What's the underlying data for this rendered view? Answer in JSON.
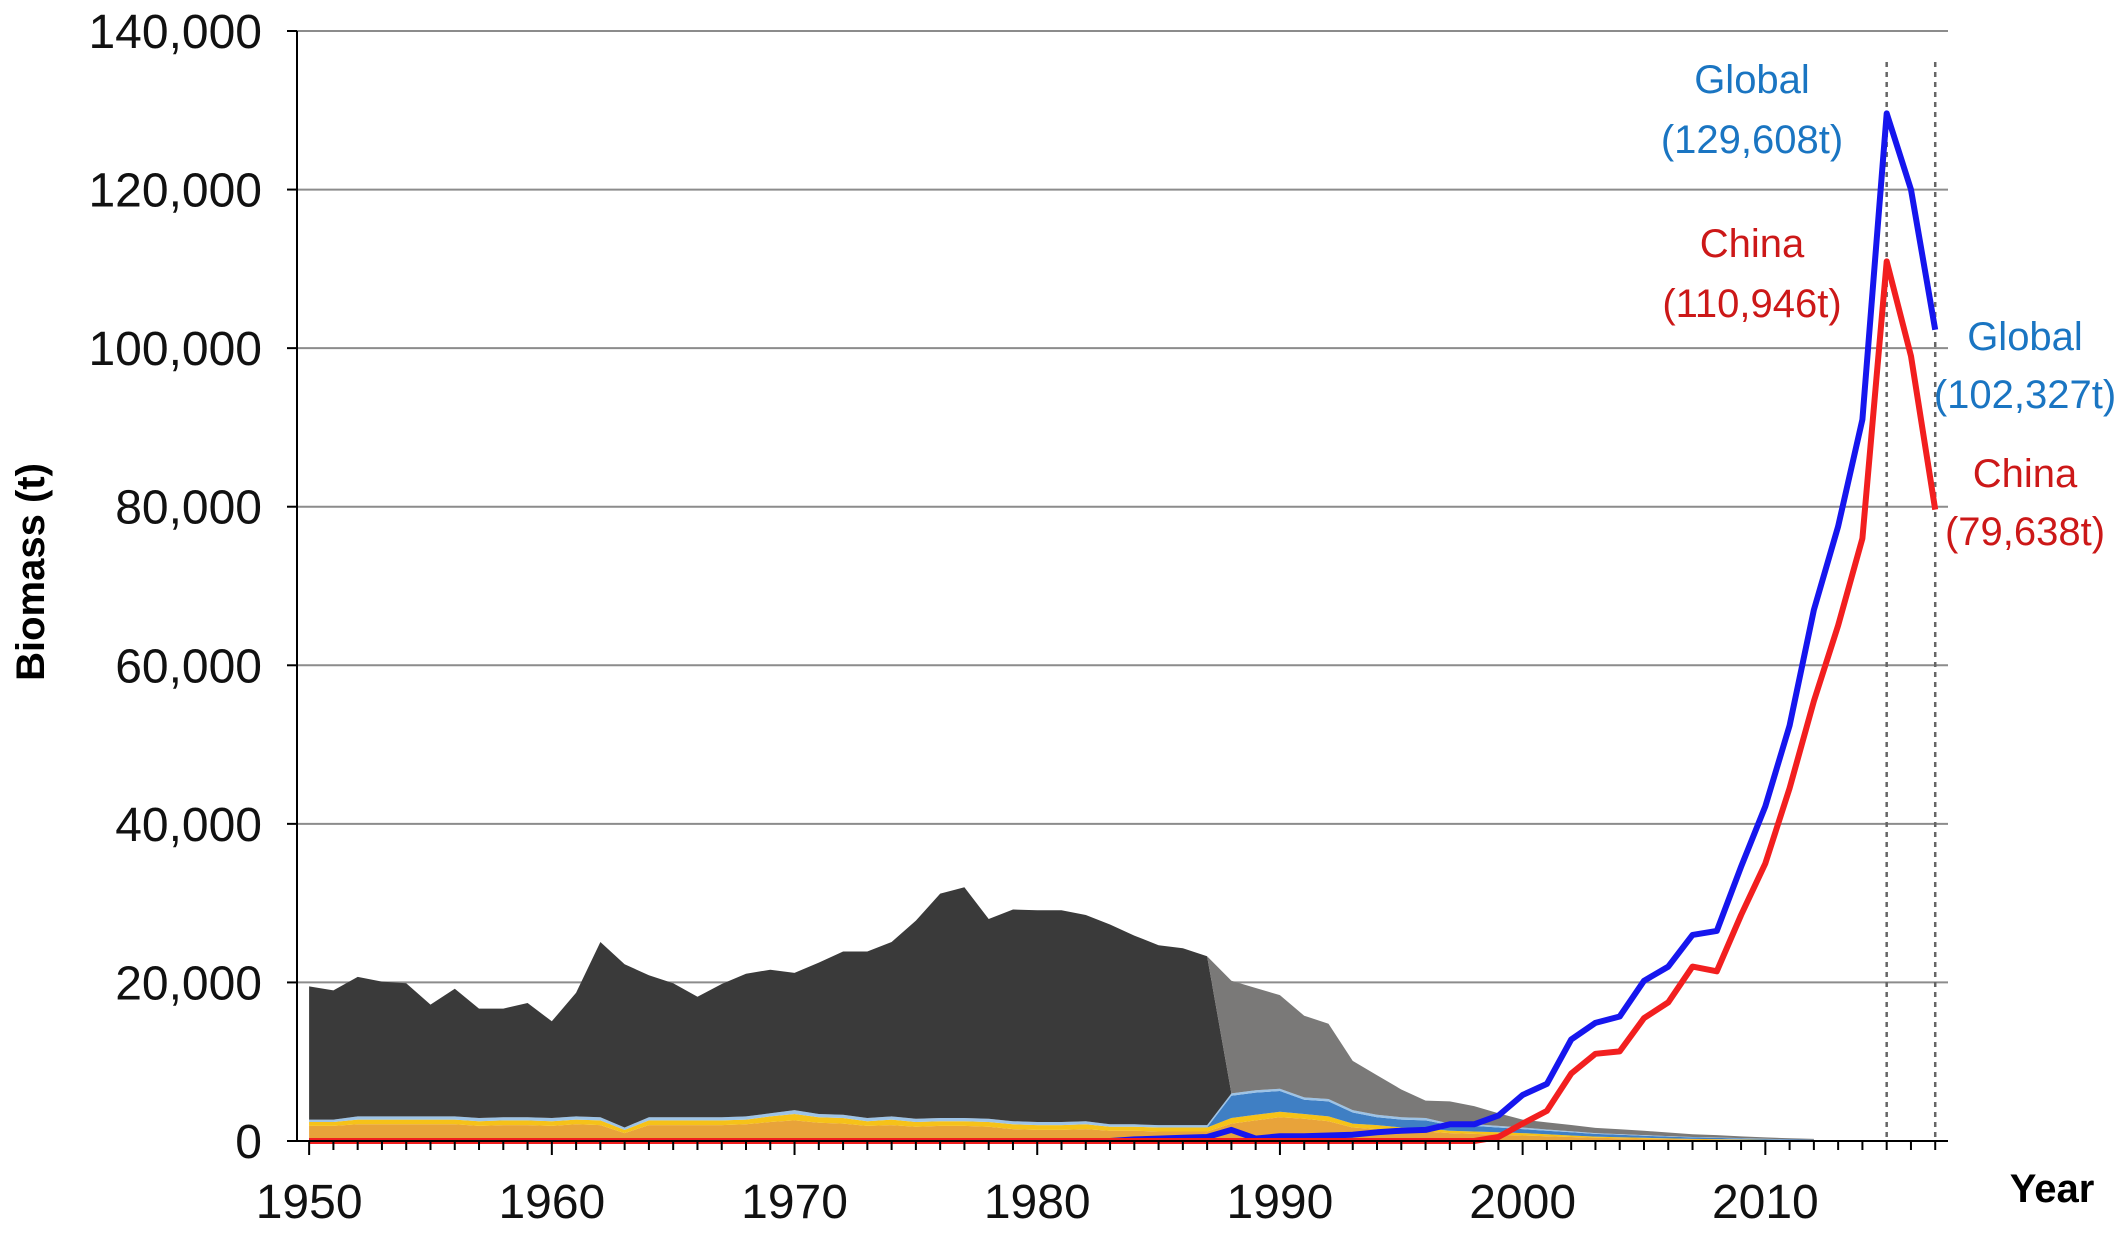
{
  "chart_data": {
    "type": "area",
    "xlabel": "Year",
    "ylabel": "Biomass (t)",
    "ylim": [
      0,
      140000
    ],
    "xlim": [
      1950,
      2017
    ],
    "grid": true,
    "y_ticks": [
      0,
      20000,
      40000,
      60000,
      80000,
      100000,
      120000,
      140000
    ],
    "y_tick_labels": [
      "0",
      "20,000",
      "40,000",
      "60,000",
      "80,000",
      "100,000",
      "120,000",
      "140,000"
    ],
    "x_ticks": [
      1950,
      1960,
      1970,
      1980,
      1990,
      2000,
      2010
    ],
    "x_tick_labels": [
      "1950",
      "1960",
      "1970",
      "1980",
      "1990",
      "2000",
      "2010"
    ],
    "stacked_areas": {
      "years": [
        1950,
        1951,
        1952,
        1953,
        1954,
        1955,
        1956,
        1957,
        1958,
        1959,
        1960,
        1961,
        1962,
        1963,
        1964,
        1965,
        1966,
        1967,
        1968,
        1969,
        1970,
        1971,
        1972,
        1973,
        1974,
        1975,
        1976,
        1977,
        1978,
        1979,
        1980,
        1981,
        1982,
        1983,
        1984,
        1985,
        1986,
        1987,
        1988,
        1989,
        1990,
        1991,
        1992,
        1993,
        1994,
        1995,
        1996,
        1997,
        1998,
        1999,
        2000,
        2001,
        2002,
        2003,
        2004,
        2005,
        2006,
        2007,
        2008,
        2009,
        2010,
        2011,
        2012
      ],
      "layers": [
        {
          "color": "#e8a33a",
          "values": [
            1900,
            1900,
            2100,
            2100,
            2100,
            2100,
            2100,
            1900,
            2000,
            2000,
            1900,
            2100,
            2000,
            1000,
            2000,
            2000,
            2000,
            2000,
            2100,
            2400,
            2600,
            2300,
            2200,
            1900,
            2000,
            1800,
            1900,
            1900,
            1800,
            1500,
            1400,
            1400,
            1500,
            1300,
            1300,
            1200,
            1200,
            1200,
            2200,
            2600,
            3000,
            2800,
            2500,
            1700,
            1500,
            1300,
            1200,
            1000,
            900,
            800,
            700,
            600,
            500,
            400,
            350,
            300,
            250,
            200,
            180,
            150,
            120,
            100,
            80
          ]
        },
        {
          "color": "#f6c218",
          "values": [
            500,
            500,
            600,
            600,
            600,
            600,
            600,
            600,
            600,
            600,
            600,
            600,
            600,
            400,
            600,
            600,
            600,
            600,
            600,
            700,
            800,
            700,
            700,
            600,
            700,
            600,
            600,
            600,
            600,
            600,
            600,
            600,
            600,
            500,
            500,
            500,
            500,
            500,
            700,
            700,
            700,
            600,
            600,
            500,
            500,
            400,
            400,
            300,
            300,
            300,
            300,
            250,
            200,
            150,
            130,
            100,
            80,
            70,
            60,
            50,
            40,
            30,
            20
          ]
        },
        {
          "color": "#3f7fc4",
          "values": [
            0,
            0,
            0,
            0,
            0,
            0,
            0,
            0,
            0,
            0,
            0,
            0,
            0,
            0,
            0,
            0,
            0,
            0,
            0,
            0,
            0,
            0,
            0,
            0,
            0,
            0,
            0,
            0,
            0,
            0,
            0,
            0,
            0,
            0,
            0,
            0,
            0,
            0,
            2800,
            2800,
            2600,
            1800,
            1900,
            1400,
            1000,
            1000,
            1000,
            700,
            700,
            600,
            500,
            450,
            400,
            350,
            300,
            260,
            220,
            180,
            150,
            120,
            90,
            70,
            50
          ]
        },
        {
          "color": "#9dc3e6",
          "values": [
            300,
            300,
            400,
            400,
            400,
            400,
            400,
            400,
            400,
            400,
            400,
            400,
            400,
            300,
            400,
            400,
            400,
            400,
            400,
            400,
            500,
            400,
            400,
            400,
            400,
            400,
            400,
            400,
            400,
            400,
            400,
            400,
            400,
            300,
            300,
            300,
            300,
            300,
            300,
            300,
            300,
            300,
            300,
            300,
            300,
            300,
            300,
            200,
            200,
            200,
            200,
            150,
            120,
            100,
            90,
            80,
            70,
            60,
            50,
            40,
            30,
            20,
            10
          ]
        },
        {
          "color": "#3a3a3a",
          "values": [
            16800,
            16300,
            17600,
            17000,
            16800,
            14100,
            16100,
            13800,
            13700,
            14400,
            12200,
            15600,
            22100,
            20600,
            17900,
            16900,
            15200,
            16800,
            18000,
            18100,
            17300,
            19100,
            20600,
            21000,
            22000,
            25000,
            28300,
            29100,
            25200,
            26700,
            26700,
            26700,
            26000,
            25200,
            23800,
            22700,
            22300,
            21300,
            0,
            0,
            0,
            0,
            0,
            0,
            0,
            0,
            0,
            0,
            0,
            0,
            0,
            0,
            0,
            0,
            0,
            0,
            0,
            0,
            0,
            0,
            0,
            0,
            0
          ]
        },
        {
          "color": "#7a7978",
          "values": [
            0,
            0,
            0,
            0,
            0,
            0,
            0,
            0,
            0,
            0,
            0,
            0,
            0,
            0,
            0,
            0,
            0,
            0,
            0,
            0,
            0,
            0,
            0,
            0,
            0,
            0,
            0,
            0,
            0,
            0,
            0,
            0,
            0,
            0,
            0,
            0,
            0,
            0,
            14200,
            12900,
            11800,
            10300,
            9500,
            6200,
            5000,
            3500,
            2200,
            2800,
            2300,
            1600,
            1000,
            900,
            800,
            650,
            600,
            550,
            450,
            350,
            300,
            220,
            170,
            130,
            100
          ]
        }
      ]
    },
    "series": [
      {
        "name": "Global",
        "color": "#1616ee",
        "x": [
          1950,
          1951,
          1952,
          1953,
          1954,
          1955,
          1956,
          1957,
          1958,
          1959,
          1960,
          1961,
          1962,
          1963,
          1964,
          1965,
          1966,
          1967,
          1968,
          1969,
          1970,
          1971,
          1972,
          1973,
          1974,
          1975,
          1976,
          1977,
          1978,
          1979,
          1980,
          1981,
          1982,
          1983,
          1984,
          1985,
          1986,
          1987,
          1988,
          1989,
          1990,
          1991,
          1992,
          1993,
          1994,
          1995,
          1996,
          1997,
          1998,
          1999,
          2000,
          2001,
          2002,
          2003,
          2004,
          2005,
          2006,
          2007,
          2008,
          2009,
          2010,
          2011,
          2012,
          2013,
          2014,
          2015,
          2016,
          2017
        ],
        "y": [
          0,
          0,
          0,
          0,
          0,
          0,
          0,
          0,
          0,
          0,
          0,
          0,
          0,
          0,
          0,
          0,
          0,
          0,
          0,
          0,
          0,
          0,
          0,
          0,
          0,
          0,
          0,
          0,
          0,
          0,
          0,
          0,
          0,
          0,
          200,
          300,
          400,
          500,
          1400,
          300,
          600,
          600,
          700,
          800,
          1100,
          1300,
          1400,
          2100,
          2100,
          3200,
          5800,
          7200,
          12800,
          14900,
          15700,
          20200,
          22000,
          26000,
          26500,
          34600,
          42200,
          52400,
          67000,
          77500,
          91000,
          129608,
          120000,
          102327
        ]
      },
      {
        "name": "China",
        "color": "#f21f1f",
        "x": [
          1950,
          1951,
          1952,
          1953,
          1954,
          1955,
          1956,
          1957,
          1958,
          1959,
          1960,
          1961,
          1962,
          1963,
          1964,
          1965,
          1966,
          1967,
          1968,
          1969,
          1970,
          1971,
          1972,
          1973,
          1974,
          1975,
          1976,
          1977,
          1978,
          1979,
          1980,
          1981,
          1982,
          1983,
          1984,
          1985,
          1986,
          1987,
          1988,
          1989,
          1990,
          1991,
          1992,
          1993,
          1994,
          1995,
          1996,
          1997,
          1998,
          1999,
          2000,
          2001,
          2002,
          2003,
          2004,
          2005,
          2006,
          2007,
          2008,
          2009,
          2010,
          2011,
          2012,
          2013,
          2014,
          2015,
          2016,
          2017
        ],
        "y": [
          0,
          0,
          0,
          0,
          0,
          0,
          0,
          0,
          0,
          0,
          0,
          0,
          0,
          0,
          0,
          0,
          0,
          0,
          0,
          0,
          0,
          0,
          0,
          0,
          0,
          0,
          0,
          0,
          0,
          0,
          0,
          0,
          0,
          0,
          0,
          0,
          0,
          0,
          0,
          0,
          0,
          0,
          0,
          0,
          0,
          0,
          0,
          0,
          0,
          500,
          2200,
          3800,
          8500,
          11000,
          11300,
          15500,
          17500,
          22000,
          21400,
          28500,
          35000,
          44500,
          55500,
          65000,
          76000,
          110946,
          99000,
          79638
        ]
      }
    ],
    "reference_lines": [
      2015,
      2017
    ],
    "annotations": [
      {
        "text": "Global",
        "color": "#1a75c2"
      },
      {
        "text": "(129,608t)",
        "color": "#1a75c2"
      },
      {
        "text": "China",
        "color": "#cc1818"
      },
      {
        "text": "(110,946t)",
        "color": "#cc1818"
      },
      {
        "text": "Global",
        "color": "#1a75c2"
      },
      {
        "text": "(102,327t)",
        "color": "#1a75c2"
      },
      {
        "text": "China",
        "color": "#cc1818"
      },
      {
        "text": "(79,638t)",
        "color": "#cc1818"
      }
    ]
  }
}
